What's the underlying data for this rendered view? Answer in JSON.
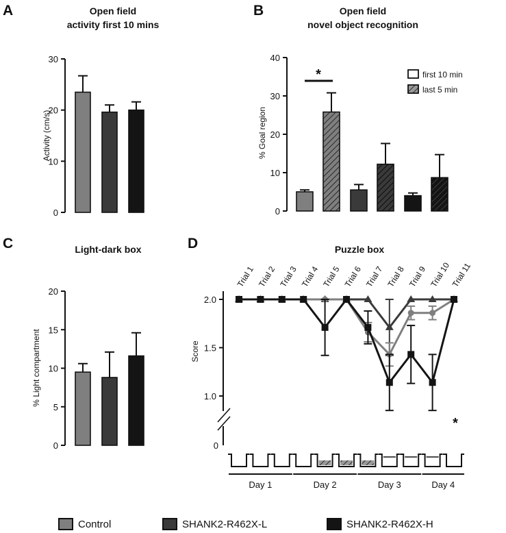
{
  "colors": {
    "control": "#7f7f7f",
    "shank_l": "#3a3a3a",
    "shank_h": "#141414",
    "axis": "#111111"
  },
  "legend": [
    {
      "label": "Control",
      "color": "#7f7f7f"
    },
    {
      "label": "SHANK2-R462X-L",
      "color": "#3a3a3a"
    },
    {
      "label": "SHANK2-R462X-H",
      "color": "#141414"
    }
  ],
  "chart_data": [
    {
      "panel": "A",
      "type": "bar",
      "title": "Open field",
      "subtitle": "activity first 10 mins",
      "ylabel": "Activity (cm/s)",
      "ylim": [
        0,
        30
      ],
      "yticks": [
        "0",
        "10",
        "20",
        "30"
      ],
      "categories": [
        "Control",
        "SHANK2-R462X-L",
        "SHANK2-R462X-H"
      ],
      "values": [
        23.5,
        19.6,
        20.0
      ],
      "errors": [
        3.2,
        1.4,
        1.6
      ]
    },
    {
      "panel": "B",
      "type": "bar",
      "title": "Open field",
      "subtitle": "novel object recognition",
      "ylabel": "% Goal region",
      "ylim": [
        0,
        40
      ],
      "yticks": [
        "0",
        "10",
        "20",
        "30",
        "40"
      ],
      "legend": [
        "first 10 min",
        "last 5 min"
      ],
      "bars": [
        {
          "group": "Control",
          "period": "first 10 min",
          "value": 5.0,
          "error": 0.5
        },
        {
          "group": "Control",
          "period": "last 5 min",
          "value": 25.8,
          "error": 5.0
        },
        {
          "group": "SHANK2-R462X-L",
          "period": "first 10 min",
          "value": 5.5,
          "error": 1.4
        },
        {
          "group": "SHANK2-R462X-L",
          "period": "last 5 min",
          "value": 12.2,
          "error": 5.4
        },
        {
          "group": "SHANK2-R462X-H",
          "period": "first 10 min",
          "value": 4.0,
          "error": 0.7
        },
        {
          "group": "SHANK2-R462X-H",
          "period": "last 5 min",
          "value": 8.7,
          "error": 6.0
        }
      ],
      "annotation": "*"
    },
    {
      "panel": "C",
      "type": "bar",
      "title": "Light-dark box",
      "ylabel": "% Light compartment",
      "ylim": [
        0,
        20
      ],
      "yticks": [
        "0",
        "5",
        "10",
        "15",
        "20"
      ],
      "categories": [
        "Control",
        "SHANK2-R462X-L",
        "SHANK2-R462X-H"
      ],
      "values": [
        9.5,
        8.8,
        11.6
      ],
      "errors": [
        1.1,
        3.3,
        3.0
      ]
    },
    {
      "panel": "D",
      "type": "line",
      "title": "Puzzle box",
      "ylabel": "Score",
      "ylim": [
        0,
        2
      ],
      "yticks": [
        "1.0",
        "1.5",
        "2.0"
      ],
      "y_axis_break": true,
      "x": [
        "Trial 1",
        "Trial 2",
        "Trial 3",
        "Trial 4",
        "Trial 5",
        "Trial 6",
        "Trial 7",
        "Trial 8",
        "Trial 9",
        "Trial 10",
        "Trial 11"
      ],
      "days": [
        "Day 1",
        "Day 2",
        "Day 3",
        "Day 4"
      ],
      "day_trials": [
        [
          1,
          3
        ],
        [
          4,
          6
        ],
        [
          7,
          9
        ],
        [
          10,
          11
        ]
      ],
      "series": [
        {
          "name": "Control",
          "values": [
            2.0,
            2.0,
            2.0,
            2.0,
            2.0,
            2.0,
            1.66,
            1.43,
            1.86,
            1.86,
            2.0
          ],
          "errors": [
            0,
            0,
            0,
            0,
            0,
            0,
            0.1,
            0.12,
            0.07,
            0.07,
            0
          ],
          "marker": "circle"
        },
        {
          "name": "SHANK2-R462X-L",
          "values": [
            2.0,
            2.0,
            2.0,
            2.0,
            2.0,
            2.0,
            2.0,
            1.71,
            2.0,
            2.0,
            2.0
          ],
          "errors": [
            0,
            0,
            0,
            0,
            0,
            0,
            0,
            0.29,
            0,
            0,
            0
          ],
          "marker": "triangle"
        },
        {
          "name": "SHANK2-R462X-H",
          "values": [
            2.0,
            2.0,
            2.0,
            2.0,
            1.71,
            2.0,
            1.71,
            1.14,
            1.43,
            1.14,
            2.0
          ],
          "errors": [
            0,
            0,
            0,
            0,
            0.29,
            0,
            0.17,
            0.29,
            0.3,
            0.29,
            0
          ],
          "marker": "square"
        }
      ],
      "annotation": "*"
    }
  ]
}
